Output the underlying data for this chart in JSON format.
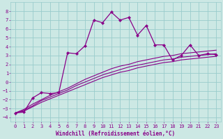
{
  "xlabel": "Windchill (Refroidissement éolien,°C)",
  "bg_color": "#cce8e4",
  "grid_color": "#99cccc",
  "line_color": "#880088",
  "xlim": [
    -0.5,
    23.5
  ],
  "ylim": [
    -4.5,
    9.0
  ],
  "xticks": [
    0,
    1,
    2,
    3,
    4,
    5,
    6,
    7,
    8,
    9,
    10,
    11,
    12,
    13,
    14,
    15,
    16,
    17,
    18,
    19,
    20,
    21,
    22,
    23
  ],
  "yticks": [
    -4,
    -3,
    -2,
    -1,
    0,
    1,
    2,
    3,
    4,
    5,
    6,
    7,
    8
  ],
  "smooth_series": [
    {
      "x": [
        0,
        1,
        2,
        3,
        4,
        5,
        6,
        7,
        8,
        9,
        10,
        11,
        12,
        13,
        14,
        15,
        16,
        17,
        18,
        19,
        20,
        21,
        22,
        23
      ],
      "y": [
        -3.5,
        -3.3,
        -2.8,
        -2.3,
        -1.9,
        -1.5,
        -1.1,
        -0.7,
        -0.3,
        0.1,
        0.5,
        0.8,
        1.1,
        1.3,
        1.6,
        1.8,
        2.0,
        2.2,
        2.3,
        2.5,
        2.6,
        2.7,
        2.8,
        2.9
      ]
    },
    {
      "x": [
        0,
        1,
        2,
        3,
        4,
        5,
        6,
        7,
        8,
        9,
        10,
        11,
        12,
        13,
        14,
        15,
        16,
        17,
        18,
        19,
        20,
        21,
        22,
        23
      ],
      "y": [
        -3.5,
        -3.2,
        -2.7,
        -2.1,
        -1.7,
        -1.3,
        -0.9,
        -0.4,
        0.0,
        0.4,
        0.8,
        1.1,
        1.4,
        1.7,
        1.9,
        2.1,
        2.3,
        2.5,
        2.6,
        2.8,
        2.9,
        3.0,
        3.1,
        3.2
      ]
    },
    {
      "x": [
        0,
        1,
        2,
        3,
        4,
        5,
        6,
        7,
        8,
        9,
        10,
        11,
        12,
        13,
        14,
        15,
        16,
        17,
        18,
        19,
        20,
        21,
        22,
        23
      ],
      "y": [
        -3.5,
        -3.1,
        -2.5,
        -2.0,
        -1.5,
        -1.1,
        -0.7,
        -0.2,
        0.3,
        0.7,
        1.1,
        1.5,
        1.8,
        2.0,
        2.3,
        2.5,
        2.7,
        2.9,
        3.0,
        3.2,
        3.3,
        3.4,
        3.5,
        3.6
      ]
    }
  ],
  "marker_series": {
    "x": [
      0,
      1,
      2,
      3,
      4,
      5,
      6,
      7,
      8,
      9,
      10,
      11,
      12,
      13,
      14,
      15,
      16,
      17,
      18,
      19,
      20,
      21,
      22,
      23
    ],
    "y": [
      -3.5,
      -3.4,
      -1.8,
      -1.2,
      -1.3,
      -1.2,
      3.3,
      3.2,
      4.1,
      7.0,
      6.7,
      7.9,
      7.0,
      7.3,
      5.3,
      6.4,
      4.2,
      4.2,
      2.5,
      3.0,
      4.2,
      3.0,
      3.2,
      3.1
    ]
  }
}
